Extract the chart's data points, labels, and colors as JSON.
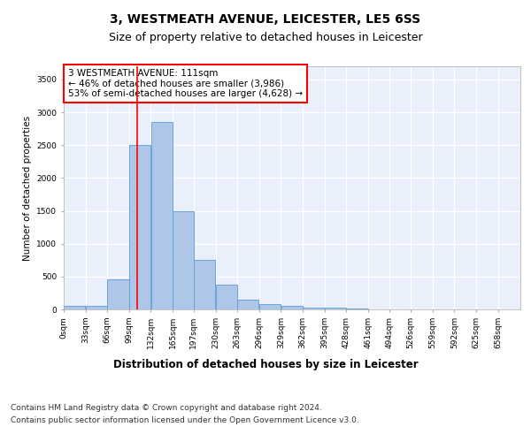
{
  "title1": "3, WESTMEATH AVENUE, LEICESTER, LE5 6SS",
  "title2": "Size of property relative to detached houses in Leicester",
  "xlabel": "Distribution of detached houses by size in Leicester",
  "ylabel": "Number of detached properties",
  "bin_width": 33,
  "bin_starts": [
    0,
    33,
    66,
    99,
    132,
    165,
    197,
    230,
    263,
    296,
    329,
    362,
    395,
    428,
    461,
    494,
    526,
    559,
    592,
    625
  ],
  "bar_heights": [
    50,
    50,
    460,
    2500,
    2850,
    1500,
    750,
    380,
    150,
    80,
    50,
    30,
    30,
    20,
    0,
    0,
    0,
    0,
    0,
    0
  ],
  "bar_color": "#aec6e8",
  "bar_edge_color": "#5b9bd5",
  "red_line_x": 111,
  "annotation_line1": "3 WESTMEATH AVENUE: 111sqm",
  "annotation_line2": "← 46% of detached houses are smaller (3,986)",
  "annotation_line3": "53% of semi-detached houses are larger (4,628) →",
  "ylim": [
    0,
    3700
  ],
  "yticks": [
    0,
    500,
    1000,
    1500,
    2000,
    2500,
    3000,
    3500
  ],
  "xlim_max": 692,
  "background_color": "#eaf0fb",
  "grid_color": "#ffffff",
  "tick_labels": [
    "0sqm",
    "33sqm",
    "66sqm",
    "99sqm",
    "132sqm",
    "165sqm",
    "197sqm",
    "230sqm",
    "263sqm",
    "296sqm",
    "329sqm",
    "362sqm",
    "395sqm",
    "428sqm",
    "461sqm",
    "494sqm",
    "526sqm",
    "559sqm",
    "592sqm",
    "625sqm",
    "658sqm"
  ],
  "footer_line1": "Contains HM Land Registry data © Crown copyright and database right 2024.",
  "footer_line2": "Contains public sector information licensed under the Open Government Licence v3.0.",
  "title1_fontsize": 10,
  "title2_fontsize": 9,
  "xlabel_fontsize": 8.5,
  "ylabel_fontsize": 7.5,
  "tick_fontsize": 6.5,
  "annotation_fontsize": 7.5,
  "footer_fontsize": 6.5
}
